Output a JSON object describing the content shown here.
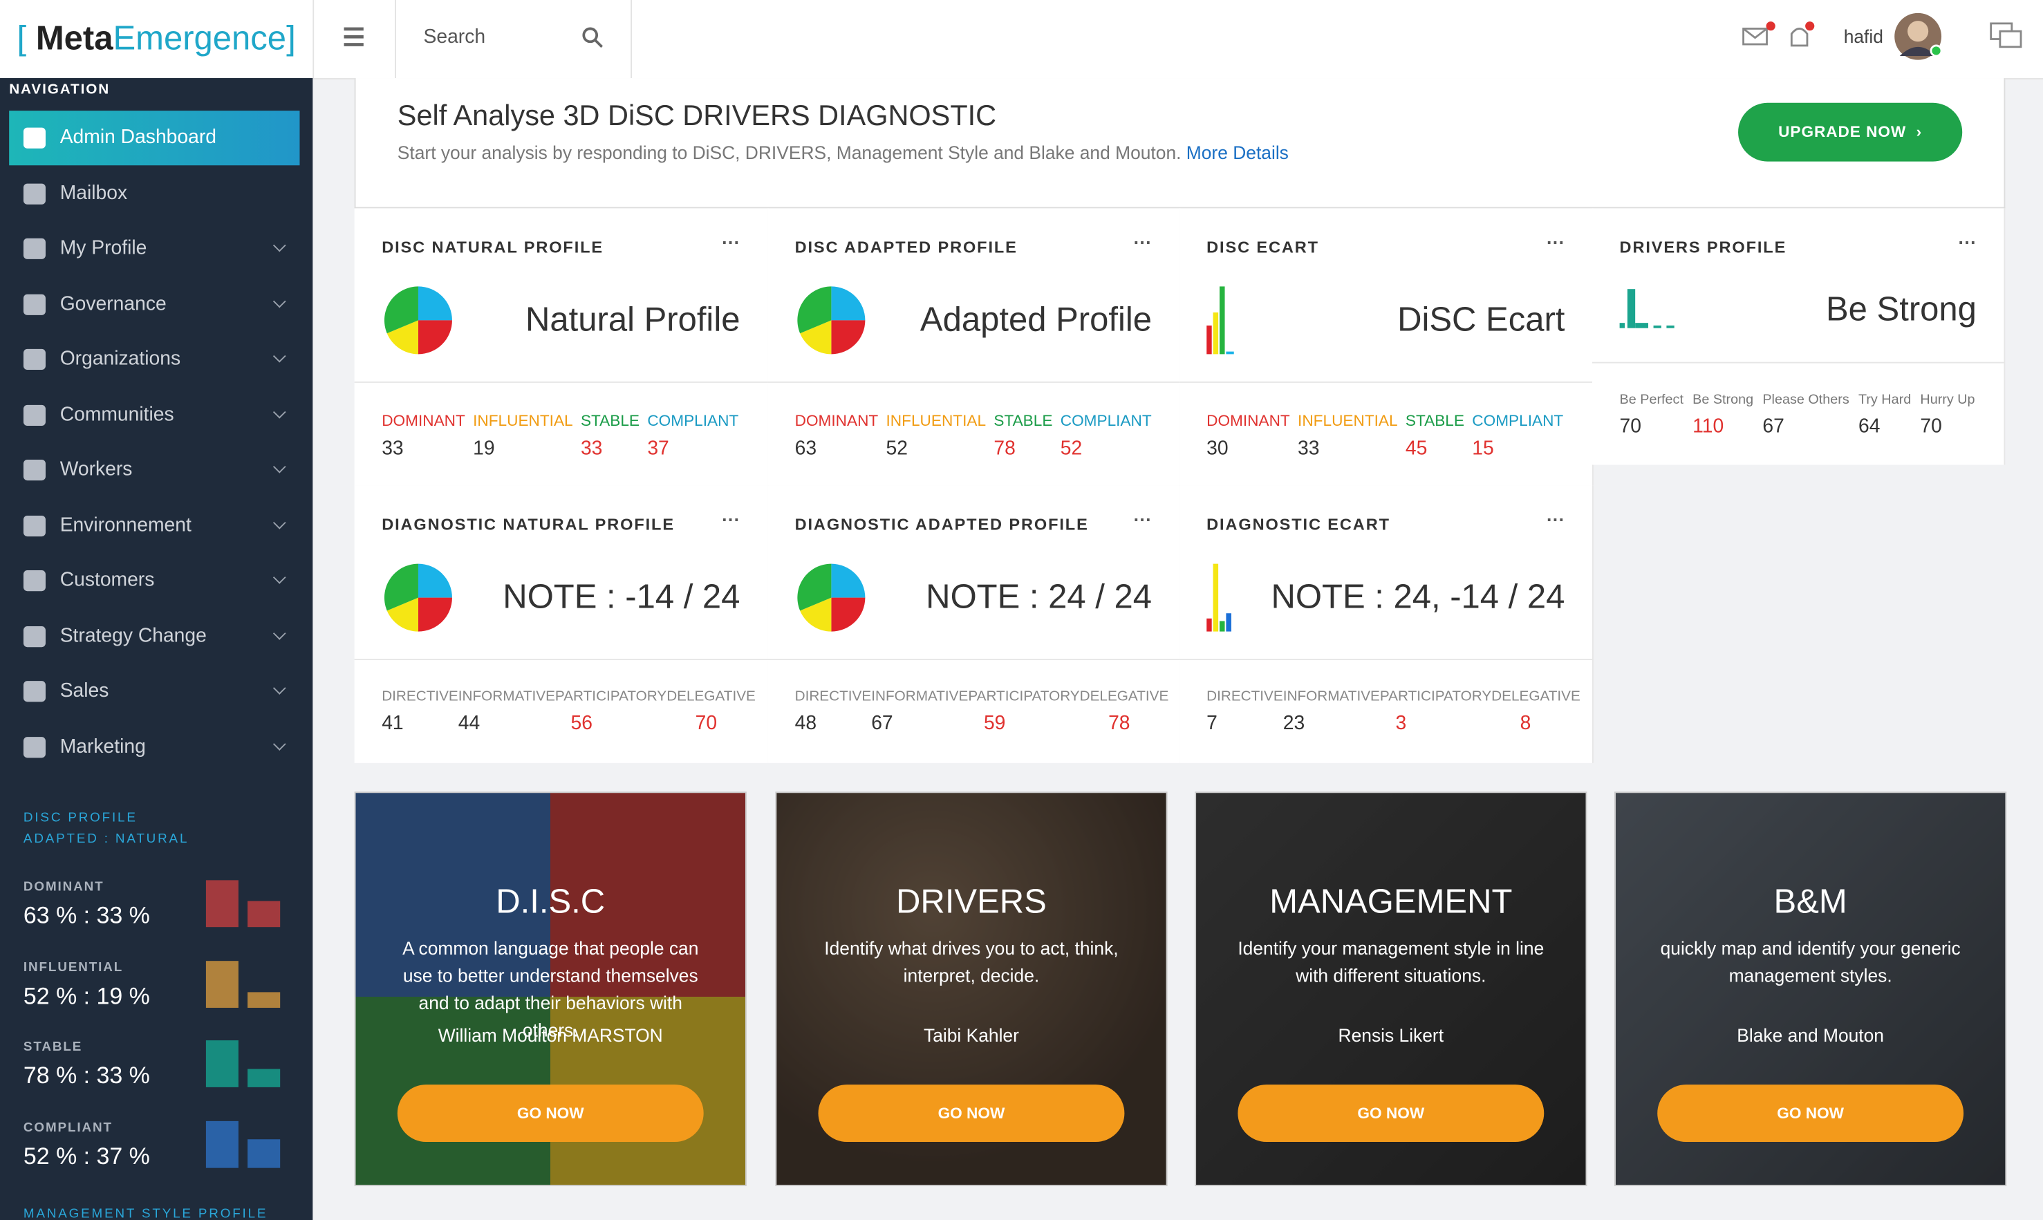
{
  "header": {
    "logo": {
      "open": "[",
      "meta": "Meta",
      "emergence": "Emergence",
      "close": "]"
    },
    "search": "Search",
    "user": "hafid"
  },
  "navigation": {
    "heading": "NAVIGATION",
    "items": [
      "Admin Dashboard",
      "Mailbox",
      "My Profile",
      "Governance",
      "Organizations",
      "Communities",
      "Workers",
      "Environnement",
      "Customers",
      "Strategy Change",
      "Sales",
      "Marketing"
    ]
  },
  "disc_profile": {
    "heading": "DISC PROFILE",
    "subheading": "ADAPTED : NATURAL",
    "items": [
      {
        "label": "DOMINANT",
        "text": "63 % : 33 %"
      },
      {
        "label": "INFLUENTIAL",
        "text": "52 % : 19 %"
      },
      {
        "label": "STABLE",
        "text": "78 % : 33 %"
      },
      {
        "label": "COMPLIANT",
        "text": "52 % : 37 %"
      }
    ],
    "next_heading": "MANAGEMENT STYLE PROFILE"
  },
  "banner": {
    "title": "Self Analyse 3D DiSC DRIVERS DIAGNOSTIC",
    "description": "Start your analysis by responding to DiSC, DRIVERS, Management Style and Blake and Mouton.",
    "link": "More Details",
    "button": "UPGRADE NOW"
  },
  "profile_cards": [
    {
      "title": "DISC NATURAL PROFILE",
      "headline": "Natural Profile",
      "columns": [
        "DOMINANT",
        "INFLUENTIAL",
        "STABLE",
        "COMPLIANT"
      ],
      "values": [
        33,
        19,
        33,
        37
      ]
    },
    {
      "title": "DISC ADAPTED PROFILE",
      "headline": "Adapted Profile",
      "columns": [
        "DOMINANT",
        "INFLUENTIAL",
        "STABLE",
        "COMPLIANT"
      ],
      "values": [
        63,
        52,
        78,
        52
      ]
    },
    {
      "title": "DISC ECART",
      "headline": "DiSC Ecart",
      "columns": [
        "DOMINANT",
        "INFLUENTIAL",
        "STABLE",
        "COMPLIANT"
      ],
      "values": [
        30,
        33,
        45,
        15
      ]
    },
    {
      "title": "DRIVERS PROFILE",
      "headline": "Be Strong",
      "columns": [
        "Be Perfect",
        "Be Strong",
        "Please Others",
        "Try Hard",
        "Hurry Up"
      ],
      "values": [
        70,
        110,
        67,
        64,
        70
      ]
    }
  ],
  "diagnostic_cards": [
    {
      "title": "DIAGNOSTIC NATURAL PROFILE",
      "headline": "NOTE : -14 / 24",
      "columns": [
        "DIRECTIVE",
        "INFORMATIVE",
        "PARTICIPATORY",
        "DELEGATIVE"
      ],
      "values": [
        41,
        44,
        56,
        70
      ]
    },
    {
      "title": "DIAGNOSTIC ADAPTED PROFILE",
      "headline": "NOTE : 24 / 24",
      "columns": [
        "DIRECTIVE",
        "INFORMATIVE",
        "PARTICIPATORY",
        "DELEGATIVE"
      ],
      "values": [
        48,
        67,
        59,
        78
      ]
    },
    {
      "title": "DIAGNOSTIC ECART",
      "headline": "NOTE : 24, -14 / 24",
      "columns": [
        "DIRECTIVE",
        "INFORMATIVE",
        "PARTICIPATORY",
        "DELEGATIVE"
      ],
      "values": [
        7,
        23,
        3,
        8
      ]
    }
  ],
  "tiles": [
    {
      "title": "D.I.S.C",
      "description": "A common language that people can use to better understand themselves and to adapt their behaviors with others.",
      "author": "William Moulton MARSTON",
      "button": "GO NOW"
    },
    {
      "title": "DRIVERS",
      "description": "Identify what drives you to act, think, interpret, decide.",
      "author": "Taibi Kahler",
      "button": "GO NOW"
    },
    {
      "title": "MANAGEMENT",
      "description": "Identify your management style in line with different situations.",
      "author": "Rensis Likert",
      "button": "GO NOW"
    },
    {
      "title": "B&M",
      "description": "quickly map and identify your generic management styles.",
      "author": "Blake and Mouton",
      "button": "GO NOW"
    }
  ]
}
